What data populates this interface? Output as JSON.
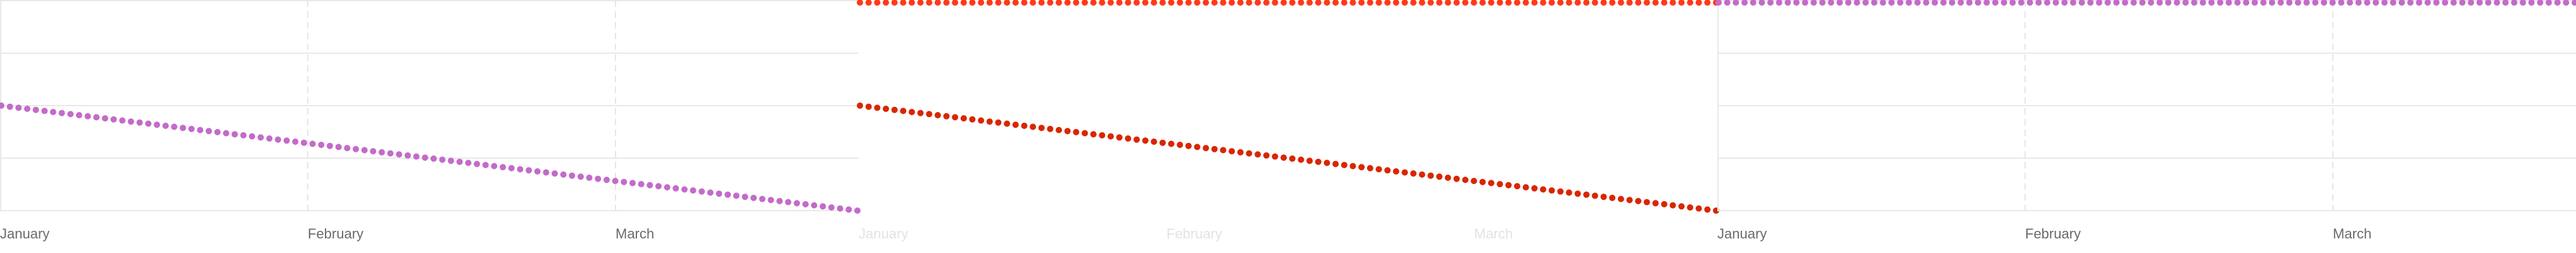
{
  "chart_data": [
    {
      "type": "scatter",
      "title": "",
      "xlabel": "",
      "ylabel": "",
      "x_ticks": [
        "January",
        "February",
        "March"
      ],
      "x_range": [
        "January",
        "April"
      ],
      "grid": true,
      "legend": "none",
      "series": [
        {
          "color": "#c36bc9",
          "y_start": 2.0,
          "y_end": 0.0,
          "points": 100
        }
      ],
      "ylim": [
        0,
        4
      ],
      "tick_color": "#6b6b6b"
    },
    {
      "type": "scatter",
      "title": "",
      "xlabel": "",
      "ylabel": "",
      "x_ticks": [
        "January",
        "February",
        "March"
      ],
      "x_range": [
        "January",
        "April"
      ],
      "grid": false,
      "legend": "none",
      "series": [
        {
          "color": "#ff3a1a",
          "y_start": 4.0,
          "y_end": 4.0,
          "points": 100
        },
        {
          "color": "#d92600",
          "y_start": 2.0,
          "y_end": 0.0,
          "points": 100
        }
      ],
      "ylim": [
        0,
        4
      ],
      "tick_color": "#e3e3e3"
    },
    {
      "type": "scatter",
      "title": "",
      "xlabel": "",
      "ylabel": "",
      "x_ticks": [
        "January",
        "February",
        "March"
      ],
      "x_range": [
        "January",
        "April"
      ],
      "grid": true,
      "legend": "none",
      "series": [
        {
          "color": "#c36bc9",
          "y_start": 4.0,
          "y_end": 4.0,
          "points": 100
        }
      ],
      "ylim": [
        0,
        4
      ],
      "tick_color": "#6b6b6b"
    }
  ]
}
